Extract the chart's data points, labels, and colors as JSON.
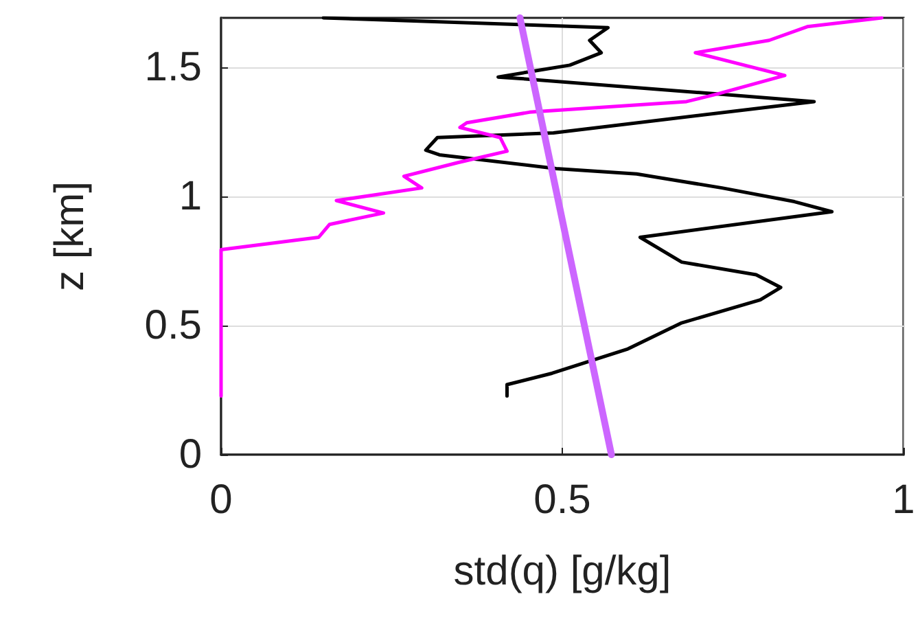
{
  "chart_data": {
    "type": "line",
    "xlabel": "std(q) [g/kg]",
    "ylabel": "z [km]",
    "xlim": [
      0,
      1
    ],
    "xticks": [
      0,
      0.5,
      1
    ],
    "ylim": [
      0,
      1.69
    ],
    "yticks": [
      0,
      0.5,
      1,
      1.5
    ],
    "grid": true,
    "marker": "none",
    "line_style": "solid",
    "series": [
      {
        "color": "#000000",
        "x": [
          0.15,
          0.567,
          0.54,
          0.557,
          0.511,
          0.458,
          0.406,
          0.44,
          0.869,
          0.487,
          0.317,
          0.3,
          0.32,
          0.491,
          0.609,
          0.734,
          0.84,
          0.895,
          0.614,
          0.675,
          0.784,
          0.82,
          0.79,
          0.675,
          0.596,
          0.485,
          0.419,
          0.419
        ],
        "values": [
          1.69,
          1.652,
          1.603,
          1.555,
          1.507,
          1.484,
          1.461,
          1.455,
          1.366,
          1.245,
          1.227,
          1.178,
          1.16,
          1.107,
          1.086,
          1.032,
          0.979,
          0.94,
          0.841,
          0.745,
          0.696,
          0.647,
          0.599,
          0.51,
          0.409,
          0.315,
          0.271,
          0.227
        ]
      },
      {
        "color": "#ff00ff",
        "x": [
          0.968,
          0.859,
          0.803,
          0.695,
          0.826,
          0.728,
          0.682,
          0.452,
          0.36,
          0.35,
          0.409,
          0.419,
          0.347,
          0.268,
          0.294,
          0.169,
          0.238,
          0.159,
          0.143,
          0,
          0
        ],
        "values": [
          1.69,
          1.656,
          1.603,
          1.555,
          1.467,
          1.396,
          1.366,
          1.325,
          1.284,
          1.266,
          1.227,
          1.174,
          1.13,
          1.077,
          1.032,
          0.983,
          0.935,
          0.891,
          0.841,
          0.793,
          0.227
        ]
      },
      {
        "color": "#cc66ff",
        "x": [
          0.438,
          0.572
        ],
        "values": [
          1.69,
          0
        ]
      }
    ]
  }
}
